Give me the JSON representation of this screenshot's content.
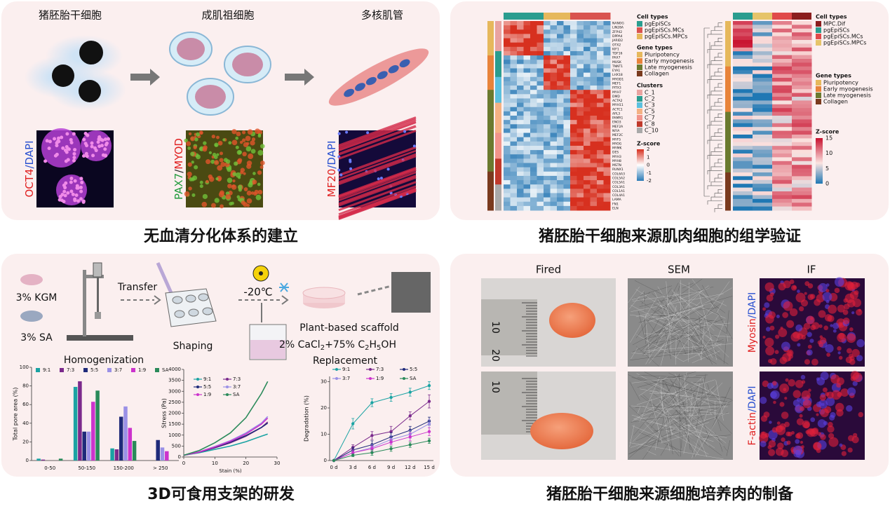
{
  "top_left": {
    "stages": [
      "猪胚胎干细胞",
      "成肌祖细胞",
      "多核肌管"
    ],
    "stains": [
      [
        {
          "text": "OCT4",
          "color": "#e02020"
        },
        {
          "text": "/DAPI",
          "color": "#2850d0"
        }
      ],
      [
        {
          "text": "PAX7",
          "color": "#1f9a3a"
        },
        {
          "text": "/",
          "color": "#222222"
        },
        {
          "text": "MYOD",
          "color": "#e02020"
        }
      ],
      [
        {
          "text": "MF20",
          "color": "#e02020"
        },
        {
          "text": "/DAPI",
          "color": "#2850d0"
        }
      ]
    ],
    "caption": "无血清分化体系的建立"
  },
  "top_right": {
    "caption": "猪胚胎干细胞来源肌肉细胞的组学验证",
    "left_heatmap": {
      "genes": [
        "NANOG",
        "LIN28A",
        "ZFP42",
        "DPPA4",
        "JARID2",
        "OTX2",
        "KIF1",
        "TDF16",
        "PAX7",
        "MUSK",
        "TNNT1",
        "EYA1",
        "LHX18",
        "MYOD1",
        "MEF1",
        "PITX3",
        "MYH7",
        "DMD",
        "ACTA2",
        "MYH11",
        "ACTC1",
        "APL3",
        "PAMR1",
        "ENO3",
        "MEF2A",
        "NFIA",
        "MEF2C",
        "MYF5",
        "MYOG",
        "MYMK",
        "DES",
        "MYH3",
        "MYH8",
        "MSTN",
        "RUNX1",
        "COL6A3",
        "COL5A2",
        "COL5A1",
        "COL3A1",
        "COL1A1",
        "COL4A1",
        "LAMA",
        "FN1",
        "ELN"
      ],
      "cell_types_title": "Cell types",
      "cell_types": [
        {
          "name": "pgEpiSCs",
          "color": "#2a9d8f"
        },
        {
          "name": "pgEpiSCs.MCs",
          "color": "#d9534f"
        },
        {
          "name": "pgEpiSCs.MPCs",
          "color": "#e6b85c"
        }
      ],
      "gene_types_title": "Gene types",
      "gene_types": [
        {
          "name": "Pluripotency",
          "color": "#e6b85c"
        },
        {
          "name": "Early myogenesis",
          "color": "#e8833a"
        },
        {
          "name": "Late myogenesis",
          "color": "#6b7a2f"
        },
        {
          "name": "Collagen",
          "color": "#7a3a1e"
        }
      ],
      "clusters_title": "Clusters",
      "clusters": [
        {
          "name": "C_1",
          "color": "#e9a3a0"
        },
        {
          "name": "C_2",
          "color": "#2a9d8f"
        },
        {
          "name": "C_3",
          "color": "#5bc0de"
        },
        {
          "name": "C_5",
          "color": "#f4b183"
        },
        {
          "name": "C_7",
          "color": "#f1948a"
        },
        {
          "name": "C_8",
          "color": "#c0392b"
        },
        {
          "name": "C_10",
          "color": "#a9a9a9"
        }
      ],
      "zscore_title": "Z-score",
      "zscore_ticks": [
        2,
        1,
        0,
        -1,
        -2
      ]
    },
    "right_heatmap": {
      "cell_types_title": "Cell types",
      "cell_types": [
        {
          "name": "MPC.Dif",
          "color": "#8b1e1e"
        },
        {
          "name": "pgEpiSCs",
          "color": "#2a9d8f"
        },
        {
          "name": "pgEpiSCs.MCs",
          "color": "#e04a4a"
        },
        {
          "name": "pgEpiSCs.MPCs",
          "color": "#e6c46a"
        }
      ],
      "gene_types_title": "Gene types",
      "gene_types": [
        {
          "name": "Pluripotency",
          "color": "#e6b85c"
        },
        {
          "name": "Early myogenesis",
          "color": "#e8833a"
        },
        {
          "name": "Late myogenesis",
          "color": "#6b7a2f"
        },
        {
          "name": "Collagen",
          "color": "#7a3a1e"
        }
      ],
      "zscore_title": "Z-score",
      "zscore_ticks": [
        15,
        10,
        5,
        0
      ]
    }
  },
  "bottom_left": {
    "caption": "3D可食用支架的研发",
    "labels": {
      "kgm": "3% KGM",
      "sa": "3% SA",
      "transfer": "Transfer",
      "temp": "-20℃",
      "homogenization": "Homogenization",
      "shaping": "Shaping",
      "scaffold": "Plant-based scaffold",
      "replacement": "Replacement"
    },
    "formula": [
      {
        "text": "2% CaCl",
        "sub": false
      },
      {
        "text": "2",
        "sub": true
      },
      {
        "text": "+75% C",
        "sub": false
      },
      {
        "text": "2",
        "sub": true
      },
      {
        "text": "H",
        "sub": false
      },
      {
        "text": "5",
        "sub": true
      },
      {
        "text": "OH",
        "sub": false
      }
    ],
    "pore_chart": {
      "type": "bar",
      "ylabel": "Total pore area (%)",
      "categories": [
        "0-50",
        "50-150",
        "150-200",
        "> 250"
      ],
      "ylim": [
        0,
        100
      ],
      "yticks": [
        0,
        20,
        40,
        60,
        80,
        100
      ],
      "series": [
        {
          "name": "9:1",
          "color": "#1aa3a3",
          "values": [
            2,
            79,
            13,
            0
          ]
        },
        {
          "name": "7:3",
          "color": "#7b2a8c",
          "values": [
            1,
            85,
            12,
            0
          ]
        },
        {
          "name": "5:5",
          "color": "#1f2a7a",
          "values": [
            0,
            31,
            47,
            22
          ]
        },
        {
          "name": "3:7",
          "color": "#9a90e6",
          "values": [
            0,
            31,
            58,
            14
          ]
        },
        {
          "name": "1:9",
          "color": "#cc33cc",
          "values": [
            0,
            63,
            35,
            10
          ]
        },
        {
          "name": "SA",
          "color": "#2a8a5a",
          "values": [
            2,
            75,
            21,
            0
          ]
        }
      ]
    },
    "stress_chart": {
      "type": "line",
      "ylabel": "Stress (Pa)",
      "xlabel": "Stain (%)",
      "x": [
        0,
        5,
        10,
        15,
        20,
        25,
        27
      ],
      "xlim": [
        0,
        30
      ],
      "xticks": [
        0,
        10,
        20,
        30
      ],
      "ylim": [
        0,
        4000
      ],
      "yticks": [
        0,
        500,
        1000,
        1500,
        2000,
        2500,
        3000,
        3500,
        4000
      ],
      "series": [
        {
          "name": "9:1",
          "color": "#1aa3a3",
          "values": [
            80,
            200,
            350,
            500,
            700,
            950,
            1050
          ]
        },
        {
          "name": "7:3",
          "color": "#7b2a8c",
          "values": [
            80,
            220,
            420,
            650,
            950,
            1350,
            1600
          ]
        },
        {
          "name": "5:5",
          "color": "#1f2a7a",
          "values": [
            80,
            230,
            440,
            680,
            980,
            1350,
            1550
          ]
        },
        {
          "name": "3:7",
          "color": "#9a90e6",
          "values": [
            80,
            240,
            480,
            750,
            1100,
            1550,
            1850
          ]
        },
        {
          "name": "1:9",
          "color": "#cc33cc",
          "values": [
            80,
            230,
            460,
            720,
            1050,
            1500,
            1780
          ]
        },
        {
          "name": "SA",
          "color": "#2a8a5a",
          "values": [
            80,
            300,
            650,
            1100,
            1800,
            2900,
            3450
          ]
        }
      ]
    },
    "degradation_chart": {
      "type": "line",
      "ylabel": "Degradation (%)",
      "categories": [
        "0 d",
        "3 d",
        "6 d",
        "9 d",
        "12 d",
        "15 d"
      ],
      "ylim": [
        0,
        32
      ],
      "yticks": [
        0,
        10,
        20,
        30
      ],
      "series": [
        {
          "name": "9:1",
          "color": "#1aa3a3",
          "values": [
            0,
            14,
            22,
            24,
            26,
            28.5
          ],
          "errors": [
            0,
            2,
            1.5,
            1.5,
            1.5,
            1.5
          ]
        },
        {
          "name": "7:3",
          "color": "#7b2a8c",
          "values": [
            0,
            5,
            9.5,
            11,
            17,
            22.5
          ],
          "errors": [
            0,
            1,
            1.5,
            2,
            1.5,
            2.5
          ]
        },
        {
          "name": "5:5",
          "color": "#1f2a7a",
          "values": [
            0,
            4,
            6,
            9,
            11.5,
            15
          ],
          "errors": [
            0,
            1,
            1.5,
            1.5,
            1.5,
            1.5
          ]
        },
        {
          "name": "3:7",
          "color": "#9a90e6",
          "values": [
            0,
            3,
            5,
            8,
            10,
            14
          ],
          "errors": [
            0,
            1,
            1,
            1.5,
            1.5,
            1.5
          ]
        },
        {
          "name": "1:9",
          "color": "#cc33cc",
          "values": [
            0,
            3,
            4.5,
            7,
            9,
            11
          ],
          "errors": [
            0,
            1,
            1,
            1,
            1.5,
            1.5
          ]
        },
        {
          "name": "SA",
          "color": "#2a8a5a",
          "values": [
            0,
            2,
            3,
            4.5,
            6,
            7.5
          ],
          "errors": [
            0,
            0.5,
            1,
            1,
            1,
            1
          ]
        }
      ]
    }
  },
  "bottom_right": {
    "caption": "猪胚胎干细胞来源细胞培养肉的制备",
    "columns": [
      "Fired",
      "SEM",
      "IF"
    ],
    "ruler_labels": [
      "10",
      "20",
      "10"
    ],
    "stains": [
      [
        {
          "text": "Myosin",
          "color": "#e02020"
        },
        {
          "text": "/DAPI",
          "color": "#2850d0"
        }
      ],
      [
        {
          "text": "F-actin",
          "color": "#e02020"
        },
        {
          "text": "/DAPI",
          "color": "#2850d0"
        }
      ]
    ]
  }
}
